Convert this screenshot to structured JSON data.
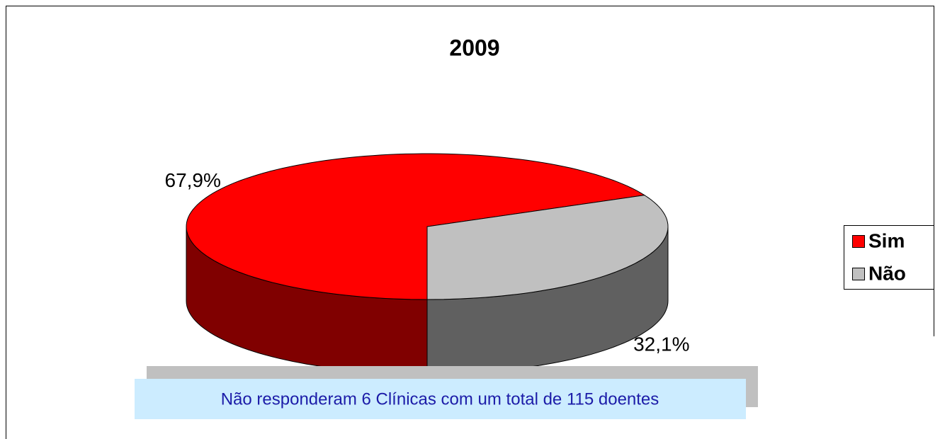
{
  "chart_data": {
    "type": "pie",
    "title": "2009",
    "categories": [
      "Sim",
      "Não"
    ],
    "values": [
      67.9,
      32.1
    ],
    "value_labels": [
      "67,9%",
      "32,1%"
    ],
    "colors": [
      "#ff0000",
      "#c0c0c0"
    ],
    "legend": "right",
    "annotation": "Não responderam 6 Clínicas com um total de 115 doentes"
  }
}
